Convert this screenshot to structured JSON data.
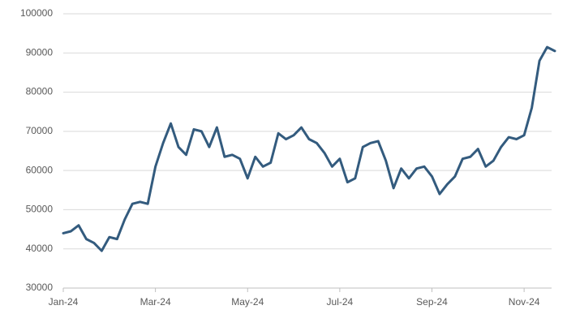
{
  "chart_data": {
    "type": "line",
    "categories": [
      "Jan-24",
      null,
      null,
      null,
      null,
      null,
      null,
      null,
      null,
      null,
      null,
      null,
      "Mar-24",
      null,
      null,
      null,
      null,
      null,
      null,
      null,
      null,
      null,
      null,
      null,
      "May-24",
      null,
      null,
      null,
      null,
      null,
      null,
      null,
      null,
      null,
      null,
      null,
      "Jul-24",
      null,
      null,
      null,
      null,
      null,
      null,
      null,
      null,
      null,
      null,
      null,
      "Sep-24",
      null,
      null,
      null,
      null,
      null,
      null,
      null,
      null,
      null,
      null,
      null,
      "Nov-24",
      null,
      null,
      null,
      null
    ],
    "series": [
      {
        "color": "#335b7e",
        "values": [
          44000,
          44500,
          46000,
          42500,
          41500,
          39500,
          43000,
          42500,
          47500,
          51500,
          52000,
          51500,
          61000,
          67000,
          72000,
          66000,
          64000,
          70500,
          70000,
          66000,
          71000,
          63500,
          64000,
          63000,
          58000,
          63500,
          61000,
          62000,
          69500,
          68000,
          69000,
          71000,
          68000,
          67000,
          64500,
          61000,
          63000,
          57000,
          58000,
          66000,
          67000,
          67500,
          62500,
          55500,
          60500,
          58000,
          60500,
          61000,
          58500,
          54000,
          56500,
          58500,
          63000,
          63500,
          65500,
          61000,
          62500,
          66000,
          68500,
          68000,
          69000,
          76000,
          88000,
          91500,
          90500
        ]
      }
    ],
    "ylim": [
      30000,
      100000
    ],
    "yticks": [
      30000,
      40000,
      50000,
      60000,
      70000,
      80000,
      90000,
      100000
    ],
    "grid": true
  }
}
